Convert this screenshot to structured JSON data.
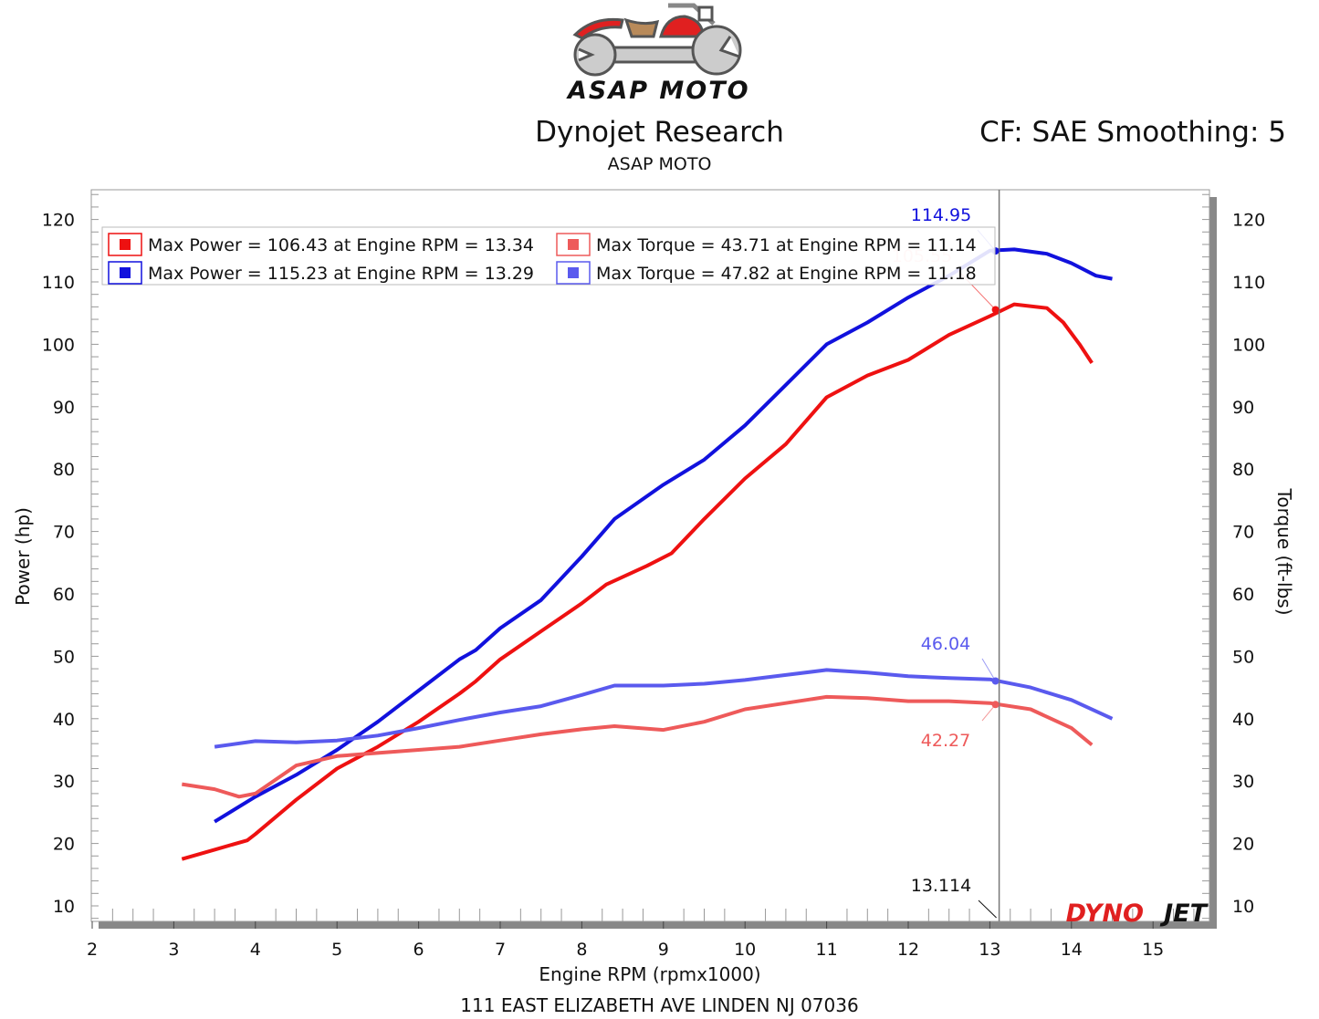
{
  "header": {
    "logo_text": "ASAP MOTO",
    "title": "Dynojet Research",
    "subtitle": "ASAP MOTO",
    "correction": "CF: SAE Smoothing: 5"
  },
  "footer": {
    "address": "111 EAST ELIZABETH AVE LINDEN NJ 07036",
    "brand_logo": "DYNOJET"
  },
  "colors": {
    "power_run1": "#ee1111",
    "power_run2": "#1111dd",
    "torque_run1": "#ee5a5a",
    "torque_run2": "#5a5aee"
  },
  "chart_data": {
    "type": "line",
    "xlabel": "Engine RPM (rpmx1000)",
    "ylabel": "Power (hp)",
    "y2label": "Torque (ft-lbs)",
    "xlim": [
      2,
      15.7
    ],
    "ylim": [
      7.5,
      124.8
    ],
    "xticks": [
      "2",
      "3",
      "4",
      "5",
      "6",
      "7",
      "8",
      "9",
      "10",
      "11",
      "12",
      "13",
      "14",
      "15"
    ],
    "yticks": [
      "10",
      "20",
      "30",
      "40",
      "50",
      "60",
      "70",
      "80",
      "90",
      "100",
      "110",
      "120"
    ],
    "grid": true,
    "legend": {
      "placement": "top-left",
      "entries": [
        "Max Power = 106.43 at Engine RPM = 13.34",
        "Max Torque = 43.71 at Engine RPM = 11.14",
        "Max Power = 115.23 at Engine RPM = 13.29",
        "Max Torque = 47.82 at Engine RPM = 11.18"
      ]
    },
    "cursor": {
      "x": 13.114,
      "x_label": "13.114",
      "values": [
        {
          "series": "Power Run 2",
          "value": 114.95,
          "label": "114.95"
        },
        {
          "series": "Power Run 1",
          "value": 105.55,
          "label": "105.55"
        },
        {
          "series": "Torque Run 2",
          "value": 46.04,
          "label": "46.04"
        },
        {
          "series": "Torque Run 1",
          "value": 42.27,
          "label": "42.27"
        }
      ]
    },
    "series": [
      {
        "name": "Power Run 1",
        "color": "#ee1111",
        "x": [
          3.1,
          3.5,
          3.9,
          4.0,
          4.5,
          5,
          5.5,
          6,
          6.5,
          6.7,
          7,
          7.5,
          8,
          8.3,
          8.8,
          9.1,
          9.5,
          10,
          10.5,
          11,
          11.5,
          12,
          12.5,
          13,
          13.3,
          13.7,
          13.9,
          14.1,
          14.25
        ],
        "y": [
          17.5,
          19,
          20.5,
          21.5,
          27,
          32,
          35.5,
          39.5,
          44,
          46,
          49.5,
          54,
          58.5,
          61.5,
          64.5,
          66.5,
          72,
          78.5,
          84,
          91.5,
          95,
          97.5,
          101.5,
          104.5,
          106.4,
          105.8,
          103.5,
          100,
          97
        ]
      },
      {
        "name": "Power Run 2",
        "color": "#1111dd",
        "x": [
          3.5,
          4,
          4.5,
          5,
          5.5,
          6,
          6.5,
          6.7,
          7,
          7.5,
          8,
          8.4,
          9,
          9.5,
          10,
          10.5,
          11,
          11.5,
          12,
          12.5,
          13,
          13.3,
          13.7,
          14,
          14.3,
          14.5
        ],
        "y": [
          23.5,
          27.5,
          31,
          35,
          39.5,
          44.5,
          49.5,
          51,
          54.5,
          59,
          66,
          72,
          77.5,
          81.5,
          87,
          93.5,
          100,
          103.5,
          107.5,
          111,
          115,
          115.2,
          114.5,
          113,
          111,
          110.5
        ]
      },
      {
        "name": "Torque Run 1",
        "color": "#ee5a5a",
        "x": [
          3.1,
          3.5,
          3.8,
          4,
          4.5,
          5,
          5.5,
          6,
          6.5,
          7,
          7.5,
          8,
          8.4,
          9,
          9.5,
          10,
          10.5,
          11,
          11.5,
          12,
          12.5,
          13,
          13.5,
          14,
          14.25
        ],
        "y": [
          29.5,
          28.7,
          27.5,
          28,
          32.5,
          34,
          34.5,
          35,
          35.5,
          36.5,
          37.5,
          38.3,
          38.8,
          38.2,
          39.5,
          41.5,
          42.5,
          43.5,
          43.3,
          42.8,
          42.8,
          42.5,
          41.5,
          38.5,
          35.8
        ]
      },
      {
        "name": "Torque Run 2",
        "color": "#5a5aee",
        "x": [
          3.5,
          4,
          4.5,
          5,
          5.5,
          6,
          6.5,
          7,
          7.5,
          8,
          8.4,
          9,
          9.5,
          10,
          10.5,
          11,
          11.5,
          12,
          12.5,
          13,
          13.5,
          14,
          14.5
        ],
        "y": [
          35.5,
          36.4,
          36.2,
          36.5,
          37.3,
          38.5,
          39.8,
          41,
          42,
          43.8,
          45.3,
          45.3,
          45.6,
          46.2,
          47,
          47.8,
          47.4,
          46.8,
          46.5,
          46.3,
          45,
          43,
          40
        ]
      }
    ]
  }
}
